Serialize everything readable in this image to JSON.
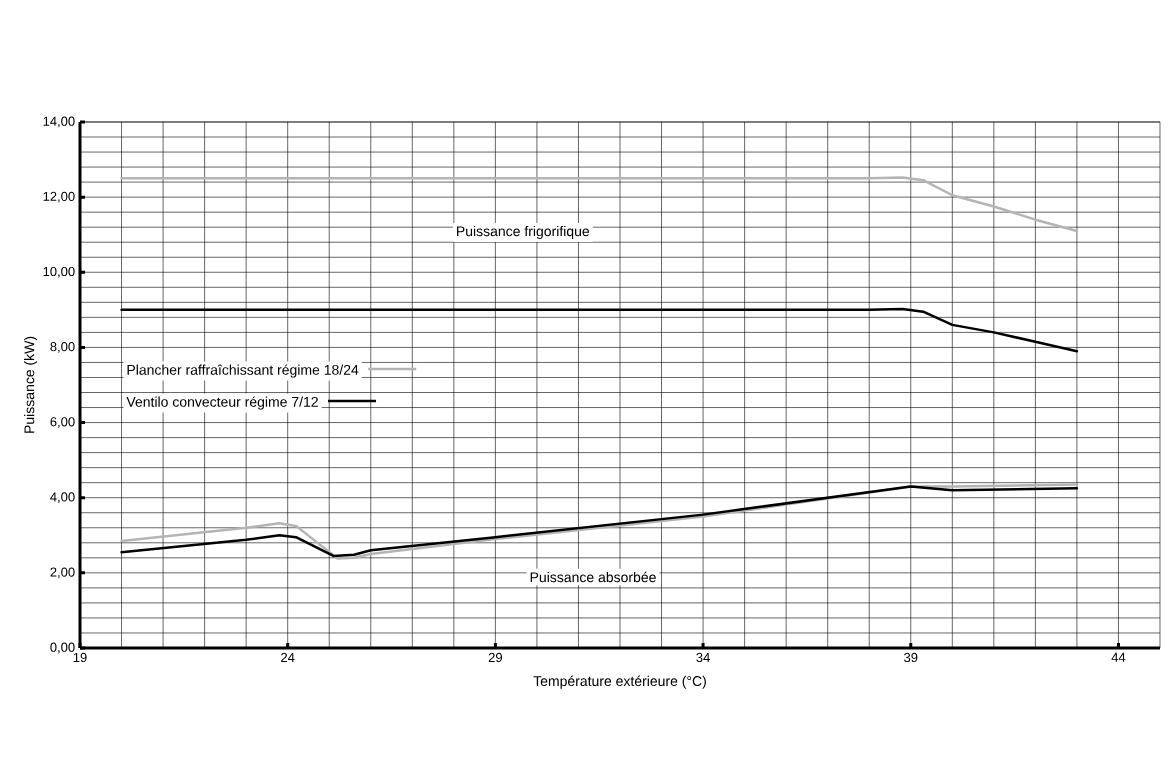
{
  "chart_data": {
    "type": "line",
    "xlabel": "Température extérieure (°C)",
    "ylabel": "Puissance (kW)",
    "xlim": [
      19,
      45
    ],
    "xticks": [
      19,
      24,
      29,
      34,
      39,
      44
    ],
    "ylim": [
      0,
      14
    ],
    "yticks": [
      {
        "value": 0,
        "label": "0,00"
      },
      {
        "value": 2,
        "label": "2,00"
      },
      {
        "value": 4,
        "label": "4,00"
      },
      {
        "value": 6,
        "label": "6,00"
      },
      {
        "value": 8,
        "label": "8,00"
      },
      {
        "value": 10,
        "label": "10,00"
      },
      {
        "value": 12,
        "label": "12,00"
      },
      {
        "value": 14,
        "label": "14,00"
      }
    ],
    "grid": true,
    "legend": "left",
    "marker": "none",
    "line_style": "solid",
    "series": [
      {
        "name": "Plancher raffraîchissant régime 18/24",
        "color": "#b4b4b4",
        "x": [
          20,
          30,
          38,
          38.8,
          39.3,
          40,
          41,
          42,
          43
        ],
        "values": [
          12.5,
          12.5,
          12.5,
          12.52,
          12.45,
          12.05,
          11.75,
          11.4,
          11.1
        ]
      },
      {
        "name": "Ventilo convecteur régime 7/12",
        "color": "#000000",
        "x": [
          20,
          30,
          38,
          38.8,
          39.3,
          40,
          41,
          42,
          43
        ],
        "values": [
          9.0,
          9.0,
          9.0,
          9.02,
          8.95,
          8.6,
          8.4,
          8.15,
          7.9
        ]
      },
      {
        "color": "#b4b4b4",
        "x": [
          20,
          23,
          23.8,
          24.2,
          25.2,
          25.6,
          26,
          29,
          34,
          39,
          40,
          43
        ],
        "values": [
          2.85,
          3.2,
          3.32,
          3.25,
          2.38,
          2.4,
          2.5,
          2.9,
          3.5,
          4.3,
          4.3,
          4.35
        ]
      },
      {
        "color": "#000000",
        "x": [
          20,
          23,
          23.8,
          24.2,
          25.1,
          25.6,
          26,
          29,
          34,
          39,
          40,
          43
        ],
        "values": [
          2.55,
          2.88,
          3.0,
          2.95,
          2.45,
          2.48,
          2.6,
          2.95,
          3.55,
          4.3,
          4.2,
          4.25
        ]
      }
    ],
    "annotations": [
      "Puissance frigorifique",
      "Puissance absorbée"
    ]
  }
}
